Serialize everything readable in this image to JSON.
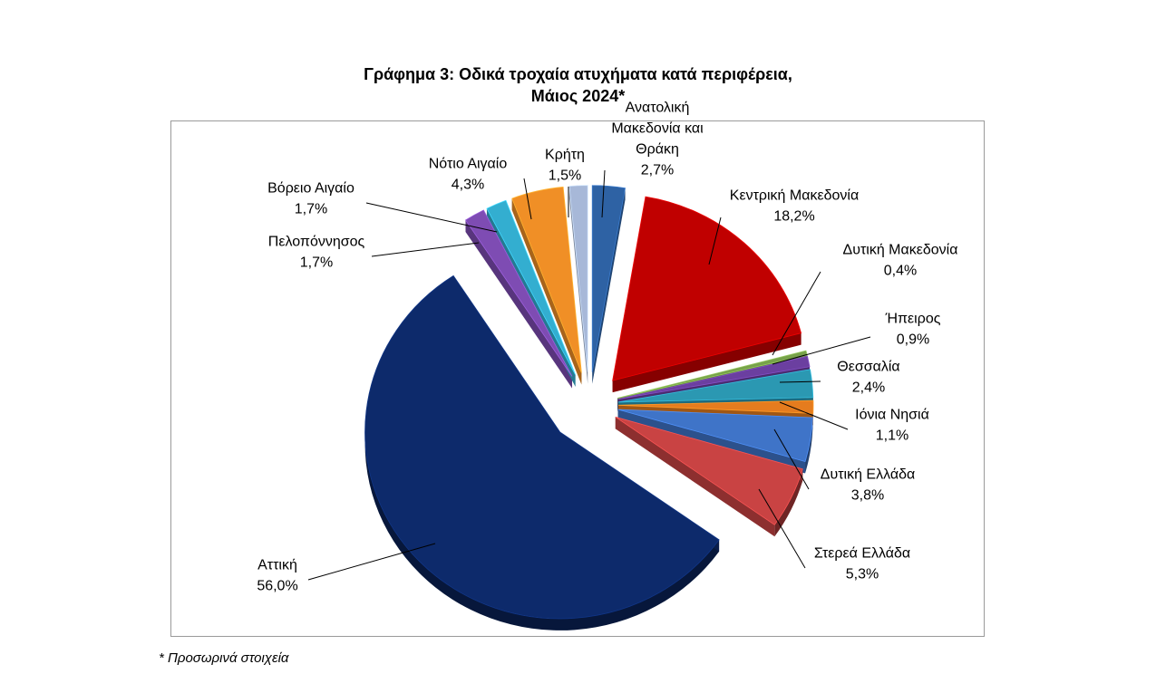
{
  "title_line1": "Γράφημα 3: Οδικά τροχαία ατυχήματα κατά περιφέρεια,",
  "title_line2": "Μάιος 2024*",
  "footnote": "* Προσωρινά στοιχεία",
  "chart_data": {
    "type": "pie",
    "variant": "3d-exploded",
    "unit": "%",
    "slices": [
      {
        "name": "Ανατολική Μακεδονία και Θράκη",
        "label_lines": [
          "Ανατολική",
          "Μακεδονία και",
          "Θράκη"
        ],
        "value": 2.7,
        "value_label": "2,7%",
        "color": "#2e62a4"
      },
      {
        "name": "Κεντρική Μακεδονία",
        "label_lines": [
          "Κεντρική Μακεδονία"
        ],
        "value": 18.2,
        "value_label": "18,2%",
        "color": "#c00000"
      },
      {
        "name": "Δυτική Μακεδονία",
        "label_lines": [
          "Δυτική Μακεδονία"
        ],
        "value": 0.4,
        "value_label": "0,4%",
        "color": "#77a14a"
      },
      {
        "name": "Ήπειρος",
        "label_lines": [
          "Ήπειρος"
        ],
        "value": 0.9,
        "value_label": "0,9%",
        "color": "#6b3fa0"
      },
      {
        "name": "Θεσσαλία",
        "label_lines": [
          "Θεσσαλία"
        ],
        "value": 2.4,
        "value_label": "2,4%",
        "color": "#2b98b2"
      },
      {
        "name": "Ιόνια Νησιά",
        "label_lines": [
          "Ιόνια Νησιά"
        ],
        "value": 1.1,
        "value_label": "1,1%",
        "color": "#e57c1e"
      },
      {
        "name": "Δυτική Ελλάδα",
        "label_lines": [
          "Δυτική Ελλάδα"
        ],
        "value": 3.8,
        "value_label": "3,8%",
        "color": "#3f74c8"
      },
      {
        "name": "Στερεά Ελλάδα",
        "label_lines": [
          "Στερεά Ελλάδα"
        ],
        "value": 5.3,
        "value_label": "5,3%",
        "color": "#c94343"
      },
      {
        "name": "Αττική",
        "label_lines": [
          "Αττική"
        ],
        "value": 56.0,
        "value_label": "56,0%",
        "color": "#0d2a6b"
      },
      {
        "name": "Πελοπόννησος",
        "label_lines": [
          "Πελοπόννησος"
        ],
        "value": 1.7,
        "value_label": "1,7%",
        "color": "#7e4cb3"
      },
      {
        "name": "Βόρειο Αιγαίο",
        "label_lines": [
          "Βόρειο Αιγαίο"
        ],
        "value": 1.7,
        "value_label": "1,7%",
        "color": "#33aed0"
      },
      {
        "name": "Νότιο Αιγαίο",
        "label_lines": [
          "Νότιο Αιγαίο"
        ],
        "value": 4.3,
        "value_label": "4,3%",
        "color": "#f08f26"
      },
      {
        "name": "Κρήτη",
        "label_lines": [
          "Κρήτη"
        ],
        "value": 1.5,
        "value_label": "1,5%",
        "color": "#a7b8d8"
      }
    ]
  }
}
